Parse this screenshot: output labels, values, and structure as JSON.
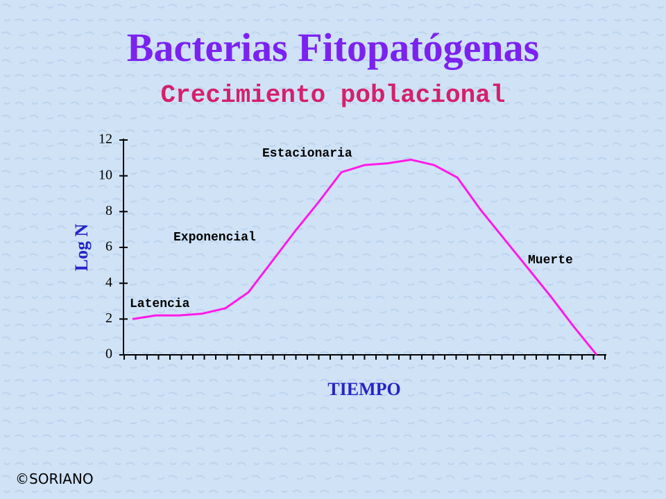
{
  "chart_data": {
    "type": "line",
    "title": "Bacterias Fitopatógenas",
    "subtitle": "Crecimiento poblacional",
    "x_label": "TIEMPO",
    "y_label": "Log N",
    "categories": [
      null,
      null,
      null,
      null,
      null,
      null,
      null,
      null,
      null,
      null,
      null,
      null,
      null,
      null,
      null,
      null,
      null,
      null,
      null,
      null,
      null
    ],
    "series": [
      {
        "name": null,
        "color": "#ff1ae8",
        "values": [
          2.0,
          2.2,
          2.2,
          2.3,
          2.6,
          3.5,
          5.2,
          6.9,
          8.5,
          10.2,
          10.6,
          10.7,
          10.9,
          10.6,
          9.9,
          8.1,
          6.5,
          4.9,
          3.3,
          1.6,
          0
        ]
      }
    ],
    "ylim": [
      0,
      12
    ],
    "yticks": [
      0,
      2,
      4,
      6,
      8,
      10,
      12
    ],
    "annotations": [
      "Latencia",
      "Exponencial",
      "Estacionaria",
      "Muerte"
    ],
    "footer": "©SORIANO"
  }
}
